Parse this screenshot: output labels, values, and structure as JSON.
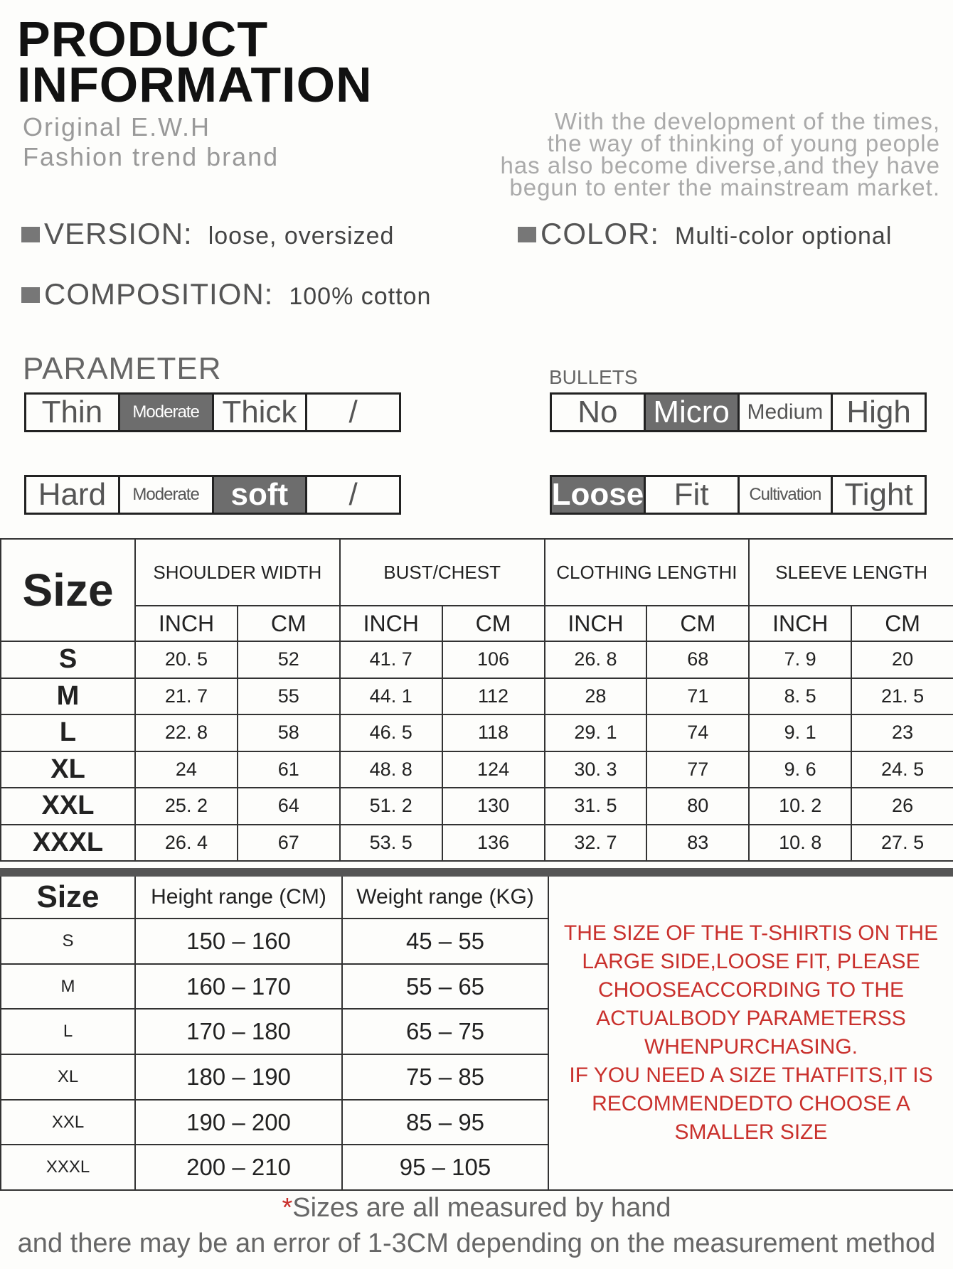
{
  "header": {
    "title_line1": "PRODUCT",
    "title_line2": "INFORMATION",
    "brand_line1": "Original E.W.H",
    "brand_line2": "Fashion trend brand",
    "intro": [
      "With the development of the times,",
      "the way of thinking of young people",
      "has also become diverse,and they have",
      "begun to enter the mainstream market."
    ]
  },
  "specs": {
    "version_label": "VERSION:",
    "version_value": "loose, oversized",
    "color_label": "COLOR:",
    "color_value": "Multi-color optional",
    "composition_label": "COMPOSITION:",
    "composition_value": "100% cotton"
  },
  "parameters": {
    "title": "PARAMETER",
    "bullets_title": "BULLETS",
    "thickness": {
      "options": [
        "Thin",
        "Moderate",
        "Thick",
        "/"
      ],
      "selected": "Moderate"
    },
    "bullets": {
      "options": [
        "No",
        "Micro",
        "Medium",
        "High"
      ],
      "selected": "Micro"
    },
    "softness": {
      "options": [
        "Hard",
        "Moderate",
        "soft",
        "/"
      ],
      "selected": "soft"
    },
    "fit": {
      "options": [
        "Loose",
        "Fit",
        "Cultivation",
        "Tight"
      ],
      "selected": "Loose"
    }
  },
  "size_table": {
    "size_header": "Size",
    "groups": [
      "SHOULDER WIDTH",
      "BUST/CHEST",
      "CLOTHING LENGTHI",
      "SLEEVE LENGTH"
    ],
    "units": [
      "INCH",
      "CM"
    ],
    "rows": [
      [
        "S",
        "20. 5",
        "52",
        "41. 7",
        "106",
        "26. 8",
        "68",
        "7. 9",
        "20"
      ],
      [
        "M",
        "21. 7",
        "55",
        "44. 1",
        "112",
        "28",
        "71",
        "8. 5",
        "21. 5"
      ],
      [
        "L",
        "22. 8",
        "58",
        "46. 5",
        "118",
        "29. 1",
        "74",
        "9. 1",
        "23"
      ],
      [
        "XL",
        "24",
        "61",
        "48. 8",
        "124",
        "30. 3",
        "77",
        "9. 6",
        "24. 5"
      ],
      [
        "XXL",
        "25. 2",
        "64",
        "51. 2",
        "130",
        "31. 5",
        "80",
        "10. 2",
        "26"
      ],
      [
        "XXXL",
        "26. 4",
        "67",
        "53. 5",
        "136",
        "32. 7",
        "83",
        "10. 8",
        "27. 5"
      ]
    ]
  },
  "fit_table": {
    "size_header": "Size",
    "height_header": "Height range (CM)",
    "weight_header": "Weight range (KG)",
    "rows": [
      [
        "S",
        "150  –  160",
        "45  –  55"
      ],
      [
        "M",
        "160  –  170",
        "55  –  65"
      ],
      [
        "L",
        "170  –  180",
        "65  –  75"
      ],
      [
        "XL",
        "180  –  190",
        "75  –  85"
      ],
      [
        "XXL",
        "190  –  200",
        "85  –  95"
      ],
      [
        "XXXL",
        "200  –  210",
        "95  –  105"
      ]
    ],
    "note": [
      "THE SIZE OF THE T-SHIRTIS ON THE",
      "LARGE SIDE,LOOSE FIT, PLEASE",
      "CHOOSEACCORDING TO THE",
      "ACTUALBODY PARAMETERSS",
      "WHENPURCHASING.",
      "IF YOU NEED A SIZE THATFITS,IT IS",
      "RECOMMENDEDTO CHOOSE A",
      "SMALLER SIZE"
    ]
  },
  "footer": {
    "star": "*",
    "line1": "Sizes are all measured by hand",
    "line2": "and there may be an error of 1-3CM depending on the measurement method"
  },
  "colors": {
    "note_red": "#c9302c",
    "selected_fill": "#6d6d6d"
  }
}
